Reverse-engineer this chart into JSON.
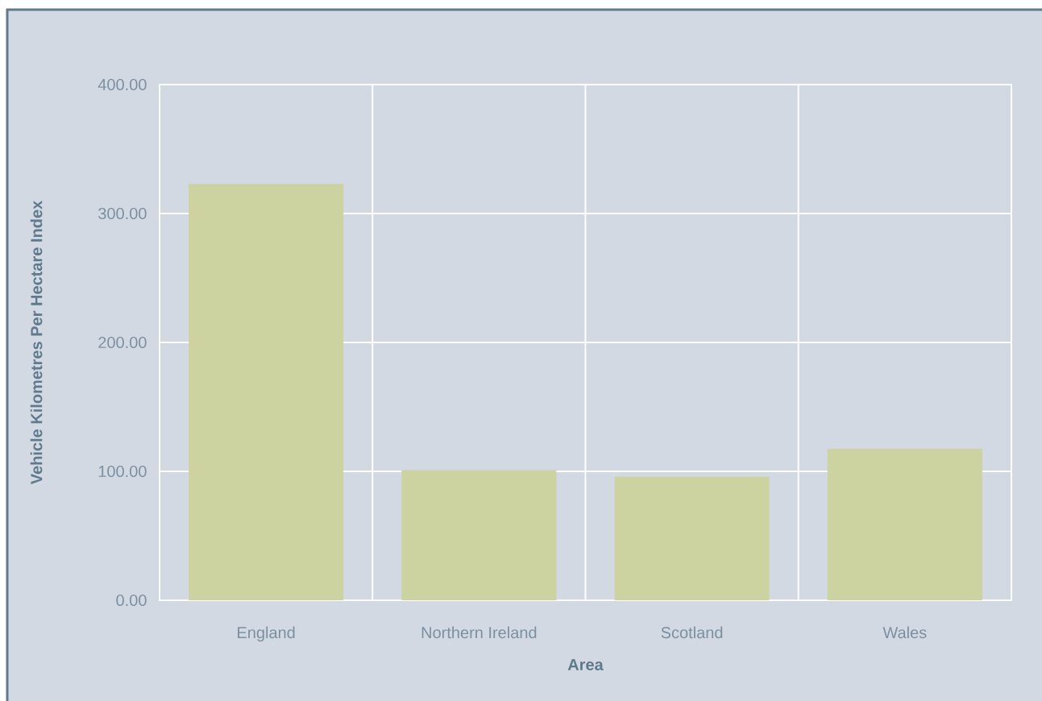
{
  "chart_data": {
    "type": "bar",
    "xlabel": "Area",
    "ylabel": "Vehicle Kilometres Per Hectare Index",
    "categories": [
      "England",
      "Northern Ireland",
      "Scotland",
      "Wales"
    ],
    "values": [
      323,
      101,
      96,
      117.5
    ],
    "color": "#ccd3a1",
    "ylim": [
      0,
      400
    ],
    "yticks": [
      {
        "value": 0,
        "label": "0.00"
      },
      {
        "value": 100,
        "label": "100.00"
      },
      {
        "value": 200,
        "label": "200.00"
      },
      {
        "value": 300,
        "label": "300.00"
      },
      {
        "value": 400,
        "label": "400.00"
      }
    ],
    "grid": true
  }
}
